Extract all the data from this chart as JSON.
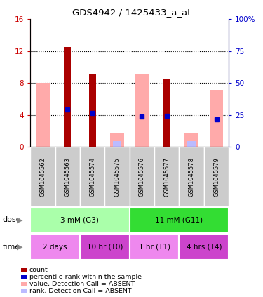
{
  "title": "GDS4942 / 1425433_a_at",
  "samples": [
    "GSM1045562",
    "GSM1045563",
    "GSM1045574",
    "GSM1045575",
    "GSM1045576",
    "GSM1045577",
    "GSM1045578",
    "GSM1045579"
  ],
  "count_values": [
    0,
    12.5,
    9.2,
    0,
    0,
    8.5,
    0,
    0
  ],
  "count_color": "#aa0000",
  "absent_value_bars": [
    8.0,
    0,
    0,
    1.8,
    9.2,
    0,
    1.8,
    7.2
  ],
  "absent_value_color": "#ffaaaa",
  "absent_rank_bars": [
    0,
    0,
    0,
    0.7,
    0,
    0,
    0.7,
    0
  ],
  "absent_rank_color": "#bbbbff",
  "percentile_rank_left_vals": [
    0,
    4.7,
    4.3,
    0,
    3.8,
    3.9,
    0,
    3.5
  ],
  "percentile_rank_color": "#0000cc",
  "ylim_left": [
    0,
    16
  ],
  "ylim_right": [
    0,
    100
  ],
  "yticks_left": [
    0,
    4,
    8,
    12,
    16
  ],
  "ytick_labels_left": [
    "0",
    "4",
    "8",
    "12",
    "16"
  ],
  "yticks_right": [
    0,
    25,
    50,
    75,
    100
  ],
  "ytick_labels_right": [
    "0",
    "25",
    "50",
    "75",
    "100%"
  ],
  "dose_groups": [
    {
      "label": "3 mM (G3)",
      "start": 0,
      "end": 4,
      "color": "#aaffaa"
    },
    {
      "label": "11 mM (G11)",
      "start": 4,
      "end": 8,
      "color": "#33dd33"
    }
  ],
  "time_groups": [
    {
      "label": "2 days",
      "start": 0,
      "end": 2,
      "color": "#ee88ee"
    },
    {
      "label": "10 hr (T0)",
      "start": 2,
      "end": 4,
      "color": "#cc44cc"
    },
    {
      "label": "1 hr (T1)",
      "start": 4,
      "end": 6,
      "color": "#ee88ee"
    },
    {
      "label": "4 hrs (T4)",
      "start": 6,
      "end": 8,
      "color": "#cc44cc"
    }
  ],
  "legend_items": [
    {
      "label": "count",
      "color": "#aa0000"
    },
    {
      "label": "percentile rank within the sample",
      "color": "#0000cc"
    },
    {
      "label": "value, Detection Call = ABSENT",
      "color": "#ffaaaa"
    },
    {
      "label": "rank, Detection Call = ABSENT",
      "color": "#bbbbff"
    }
  ],
  "dose_label": "dose",
  "time_label": "time",
  "sample_bg_color": "#cccccc",
  "background_color": "#ffffff",
  "left_axis_color": "#cc0000",
  "right_axis_color": "#0000cc"
}
